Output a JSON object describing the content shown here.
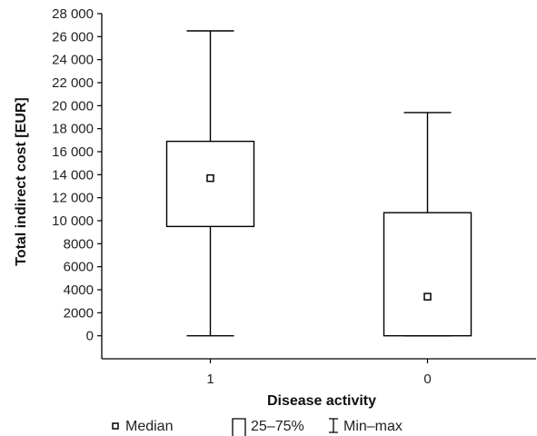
{
  "chart_data": {
    "type": "boxplot",
    "xlabel": "Disease activity",
    "ylabel": "Total indirect cost [EUR]",
    "ylim": [
      -2000,
      28000
    ],
    "yticks": [
      0,
      2000,
      4000,
      6000,
      8000,
      10000,
      12000,
      14000,
      16000,
      18000,
      20000,
      22000,
      24000,
      26000,
      28000
    ],
    "ytick_labels": [
      "0",
      "2000",
      "4000",
      "6000",
      "8000",
      "10 000",
      "12 000",
      "14 000",
      "16 000",
      "18 000",
      "20 000",
      "22 000",
      "24 000",
      "26 000",
      "28 000"
    ],
    "categories": [
      "1",
      "0"
    ],
    "boxes": [
      {
        "category": "1",
        "min": 0,
        "q1": 9500,
        "median": 13700,
        "q3": 16900,
        "max": 26500
      },
      {
        "category": "0",
        "min": 0,
        "q1": 0,
        "median": 3400,
        "q3": 10700,
        "max": 19400
      }
    ],
    "legend": [
      "Median",
      "25–75%",
      "Min–max"
    ],
    "legend_position": "bottom",
    "grid": false
  }
}
